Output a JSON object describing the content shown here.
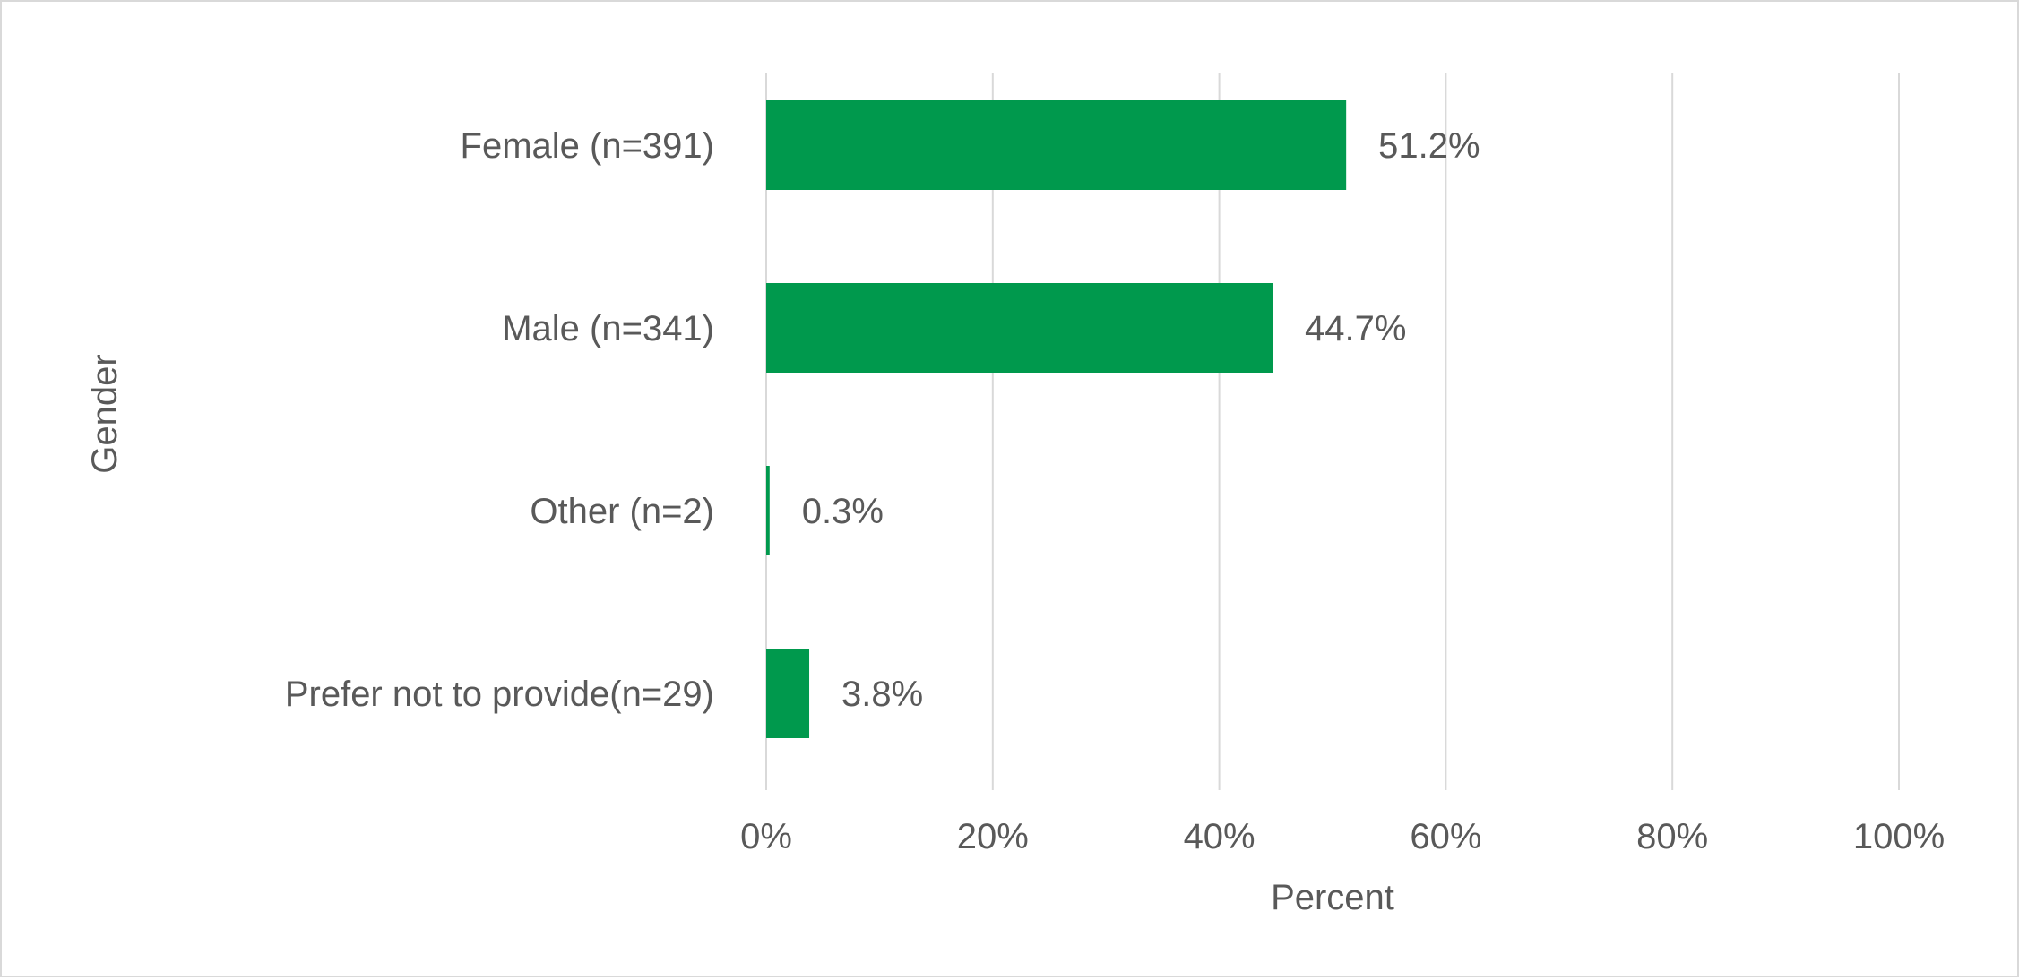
{
  "chart_data": {
    "type": "bar",
    "orientation": "horizontal",
    "categories": [
      "Female (n=391)",
      "Male (n=341)",
      "Other (n=2)",
      "Prefer not to provide(n=29)"
    ],
    "values": [
      51.2,
      44.7,
      0.3,
      3.8
    ],
    "data_labels": [
      "51.2%",
      "44.7%",
      "0.3%",
      "3.8%"
    ],
    "xlabel": "Percent",
    "ylabel": "Gender",
    "xlim": [
      0,
      100
    ],
    "x_ticks": [
      "0%",
      "20%",
      "40%",
      "60%",
      "80%",
      "100%"
    ],
    "grid": "vertical",
    "legend": "none",
    "bar_color": "#00994D",
    "gridline_color": "#d9d9d9",
    "text_color": "#595959"
  }
}
